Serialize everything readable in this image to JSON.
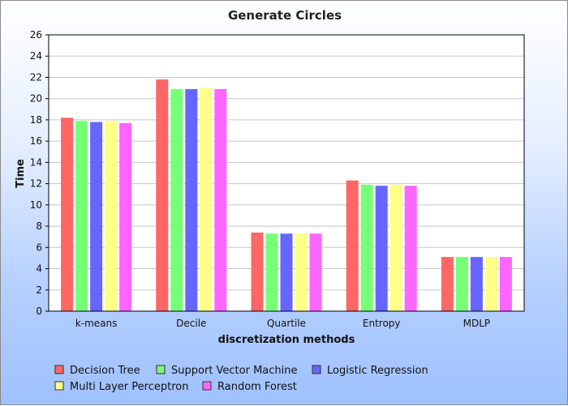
{
  "chart_data": {
    "type": "bar",
    "title": "Generate Circles",
    "xlabel": "discretization methods",
    "ylabel": "Time",
    "ylim": [
      0,
      26
    ],
    "yticks": [
      0,
      2,
      4,
      6,
      8,
      10,
      12,
      14,
      16,
      18,
      20,
      22,
      24,
      26
    ],
    "grid": true,
    "legend_position": "bottom",
    "categories": [
      "k-means",
      "Decile",
      "Quartile",
      "Entropy",
      "MDLP"
    ],
    "series": [
      {
        "name": "Decision Tree",
        "color": "#ff6666",
        "values": [
          18.2,
          21.8,
          7.4,
          12.3,
          5.1
        ]
      },
      {
        "name": "Support Vector Machine",
        "color": "#77ff77",
        "values": [
          17.9,
          20.9,
          7.3,
          11.9,
          5.1
        ]
      },
      {
        "name": "Logistic Regression",
        "color": "#6666ff",
        "values": [
          17.8,
          20.9,
          7.3,
          11.8,
          5.1
        ]
      },
      {
        "name": "Multi Layer Perceptron",
        "color": "#ffff88",
        "values": [
          17.9,
          21.0,
          7.3,
          11.9,
          5.1
        ]
      },
      {
        "name": "Random Forest",
        "color": "#ff66ff",
        "values": [
          17.7,
          20.9,
          7.3,
          11.8,
          5.1
        ]
      }
    ]
  }
}
